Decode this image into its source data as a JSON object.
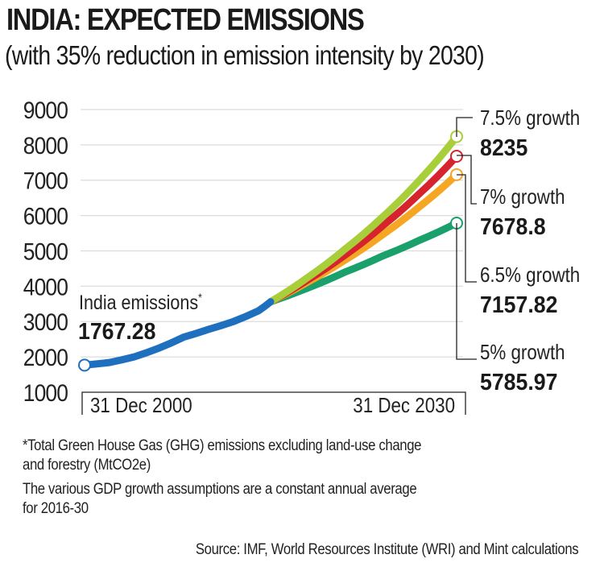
{
  "header": {
    "title": "INDIA: EXPECTED EMISSIONS",
    "subtitle": "(with 35% reduction in emission intensity by 2030)"
  },
  "footnotes": {
    "note1_line1": "*Total Green House Gas (GHG) emissions excluding land-use change",
    "note1_line2": "and forestry (MtCO2e)",
    "note2_line1": "The various GDP growth assumptions are a constant annual average",
    "note2_line2": "for 2016-30",
    "source": "Source: IMF, World Resources Institute (WRI) and Mint calculations"
  },
  "chart_data": {
    "type": "line",
    "title": "INDIA: EXPECTED EMISSIONS",
    "subtitle": "(with 35% reduction in emission intensity by 2030)",
    "xlabel": "",
    "ylabel": "",
    "units": "MtCO2e",
    "xlim": [
      2000,
      2030
    ],
    "ylim": [
      1000,
      9000
    ],
    "yticks": [
      1000,
      2000,
      3000,
      4000,
      5000,
      6000,
      7000,
      8000,
      9000
    ],
    "x_tick_labels": [
      {
        "x": 2000,
        "label": "31 Dec 2000"
      },
      {
        "x": 2030,
        "label": "31 Dec 2030"
      }
    ],
    "grid": true,
    "historical": {
      "name": "India emissions*",
      "label_value": "1767.28",
      "color": "#1f6fbf",
      "x": [
        2000,
        2002,
        2004,
        2006,
        2008,
        2010,
        2012,
        2014,
        2015
      ],
      "y": [
        1767.28,
        1840,
        2000,
        2250,
        2560,
        2780,
        3000,
        3300,
        3560
      ]
    },
    "projections": [
      {
        "name": "7.5% growth",
        "end_value": "8235",
        "color": "#a8cf3a",
        "x": [
          2015,
          2018,
          2021,
          2024,
          2027,
          2030
        ],
        "y": [
          3560,
          4250,
          5050,
          5950,
          7000,
          8235
        ]
      },
      {
        "name": "7% growth",
        "end_value": "7678.8",
        "color": "#d6242e",
        "x": [
          2015,
          2018,
          2021,
          2024,
          2027,
          2030
        ],
        "y": [
          3560,
          4180,
          4880,
          5700,
          6620,
          7678.8
        ]
      },
      {
        "name": "6.5% growth",
        "end_value": "7157.82",
        "color": "#f5a623",
        "x": [
          2015,
          2018,
          2021,
          2024,
          2027,
          2030
        ],
        "y": [
          3560,
          4120,
          4740,
          5450,
          6250,
          7157.82
        ]
      },
      {
        "name": "5% growth",
        "end_value": "5785.97",
        "color": "#1aa06a",
        "x": [
          2015,
          2018,
          2021,
          2024,
          2027,
          2030
        ],
        "y": [
          3560,
          3950,
          4400,
          4850,
          5300,
          5785.97
        ]
      }
    ]
  }
}
